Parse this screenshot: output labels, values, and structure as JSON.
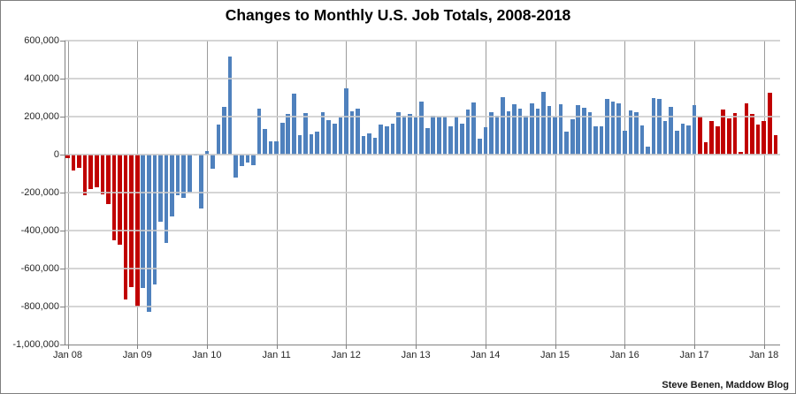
{
  "attribution": "Steve Benen, Maddow Blog",
  "chart_data": {
    "type": "bar",
    "title": "Changes to Monthly U.S. Job Totals, 2008-2018",
    "xlabel": "",
    "ylabel": "",
    "ylim": [
      -1000000,
      600000
    ],
    "y_step": 200000,
    "grid": true,
    "legend": false,
    "y_ticks": {
      "labels": [
        "600,000",
        "400,000",
        "200,000",
        "0",
        "-200,000",
        "-400,000",
        "-600,000",
        "-800,000",
        "-1,000,000"
      ],
      "values": [
        600000,
        400000,
        200000,
        0,
        -200000,
        -400000,
        -600000,
        -800000,
        -1000000
      ]
    },
    "x_tick_labels": [
      "Jan 08",
      "Jan 09",
      "Jan 10",
      "Jan 11",
      "Jan 12",
      "Jan 13",
      "Jan 14",
      "Jan 15",
      "Jan 16",
      "Jan 17",
      "Jan 18"
    ],
    "x_tick_every_months": 12,
    "colors": {
      "red": "#C00000",
      "blue": "#4F81BD",
      "gridline": "rgba(203,203,203,0.8)",
      "year_gridline": "#9B9B9B",
      "axis": "#808080",
      "text": "#262626",
      "background": "#FFFFFF",
      "border": "#7F7F7F"
    },
    "color_segments": [
      {
        "count": 13,
        "color": "#C00000"
      },
      {
        "count": 96,
        "color": "#4F81BD"
      },
      {
        "count": 14,
        "color": "#C00000"
      }
    ],
    "months": [
      "Jan 08",
      "Feb 08",
      "Mar 08",
      "Apr 08",
      "May 08",
      "Jun 08",
      "Jul 08",
      "Aug 08",
      "Sep 08",
      "Oct 08",
      "Nov 08",
      "Dec 08",
      "Jan 09",
      "Feb 09",
      "Mar 09",
      "Apr 09",
      "May 09",
      "Jun 09",
      "Jul 09",
      "Aug 09",
      "Sep 09",
      "Oct 09",
      "Nov 09",
      "Dec 09",
      "Jan 10",
      "Feb 10",
      "Mar 10",
      "Apr 10",
      "May 10",
      "Jun 10",
      "Jul 10",
      "Aug 10",
      "Sep 10",
      "Oct 10",
      "Nov 10",
      "Dec 10",
      "Jan 11",
      "Feb 11",
      "Mar 11",
      "Apr 11",
      "May 11",
      "Jun 11",
      "Jul 11",
      "Aug 11",
      "Sep 11",
      "Oct 11",
      "Nov 11",
      "Dec 11",
      "Jan 12",
      "Feb 12",
      "Mar 12",
      "Apr 12",
      "May 12",
      "Jun 12",
      "Jul 12",
      "Aug 12",
      "Sep 12",
      "Oct 12",
      "Nov 12",
      "Dec 12",
      "Jan 13",
      "Feb 13",
      "Mar 13",
      "Apr 13",
      "May 13",
      "Jun 13",
      "Jul 13",
      "Aug 13",
      "Sep 13",
      "Oct 13",
      "Nov 13",
      "Dec 13",
      "Jan 14",
      "Feb 14",
      "Mar 14",
      "Apr 14",
      "May 14",
      "Jun 14",
      "Jul 14",
      "Aug 14",
      "Sep 14",
      "Oct 14",
      "Nov 14",
      "Dec 14",
      "Jan 15",
      "Feb 15",
      "Mar 15",
      "Apr 15",
      "May 15",
      "Jun 15",
      "Jul 15",
      "Aug 15",
      "Sep 15",
      "Oct 15",
      "Nov 15",
      "Dec 15",
      "Jan 16",
      "Feb 16",
      "Mar 16",
      "Apr 16",
      "May 16",
      "Jun 16",
      "Jul 16",
      "Aug 16",
      "Sep 16",
      "Oct 16",
      "Nov 16",
      "Dec 16",
      "Jan 17",
      "Feb 17",
      "Mar 17",
      "Apr 17",
      "May 17",
      "Jun 17",
      "Jul 17",
      "Aug 17",
      "Sep 17",
      "Oct 17",
      "Nov 17",
      "Dec 17",
      "Jan 18",
      "Feb 18",
      "Mar 18"
    ],
    "values": [
      -17000,
      -83000,
      -72000,
      -214000,
      -182000,
      -172000,
      -210000,
      -259000,
      -452000,
      -474000,
      -765000,
      -697000,
      -798000,
      -701000,
      -826000,
      -684000,
      -354000,
      -467000,
      -327000,
      -216000,
      -227000,
      -198000,
      -6000,
      -283000,
      18000,
      -75000,
      156000,
      251000,
      516000,
      -122000,
      -61000,
      -42000,
      -57000,
      241000,
      137000,
      71000,
      70000,
      168000,
      212000,
      322000,
      102000,
      217000,
      106000,
      122000,
      221000,
      183000,
      164000,
      196000,
      348000,
      226000,
      243000,
      96000,
      110000,
      88000,
      160000,
      150000,
      161000,
      225000,
      203000,
      214000,
      197000,
      280000,
      141000,
      203000,
      199000,
      201000,
      149000,
      202000,
      164000,
      237000,
      274000,
      84000,
      144000,
      222000,
      203000,
      304000,
      229000,
      267000,
      243000,
      203000,
      271000,
      243000,
      331000,
      256000,
      201000,
      266000,
      119000,
      187000,
      260000,
      245000,
      223000,
      150000,
      149000,
      295000,
      280000,
      271000,
      126000,
      233000,
      225000,
      153000,
      43000,
      297000,
      291000,
      176000,
      249000,
      124000,
      164000,
      155000,
      259000,
      200000,
      65000,
      175000,
      150000,
      235000,
      190000,
      220000,
      14000,
      271000,
      216000,
      160000,
      176000,
      326000,
      103000
    ]
  }
}
